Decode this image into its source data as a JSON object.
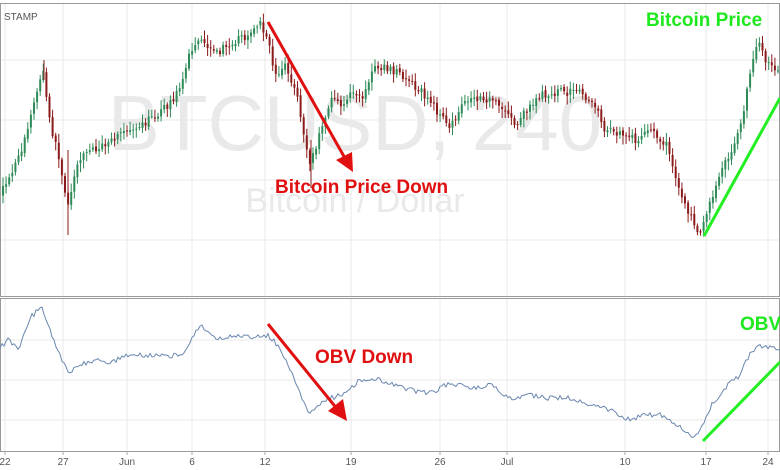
{
  "chart_data": {
    "type": "candlestick_with_indicator",
    "symbol_label": "STAMP",
    "watermark": {
      "title": "BTCUSD, 240",
      "subtitle": "Bitcoin / Dollar"
    },
    "x_ticks": [
      "22",
      "27",
      "Jun",
      "6",
      "12",
      "19",
      "26",
      "Jul",
      "10",
      "17",
      "24"
    ],
    "price_panel": {
      "series_name": "",
      "ohlc": []
    },
    "obv_panel": {
      "series_name": "",
      "values": []
    },
    "annotations": [
      {
        "text": "Bitcoin Price Down",
        "color": "#e01010"
      },
      {
        "text": "OBV Down",
        "color": "#e01010"
      },
      {
        "text": "Bitcoin Price",
        "color": "#1ee81e"
      },
      {
        "text": "OBV",
        "color": "#1ee81e"
      }
    ],
    "colors": {
      "up_candle": "#2e8b57",
      "down_candle": "#8b1a1a",
      "obv_line": "#6b87b0",
      "down_arrow": "#e01010",
      "up_line": "#22ee22",
      "grid": "#e9e9e9",
      "axis": "#aaaaaa"
    },
    "grid": true,
    "legend": "none"
  }
}
